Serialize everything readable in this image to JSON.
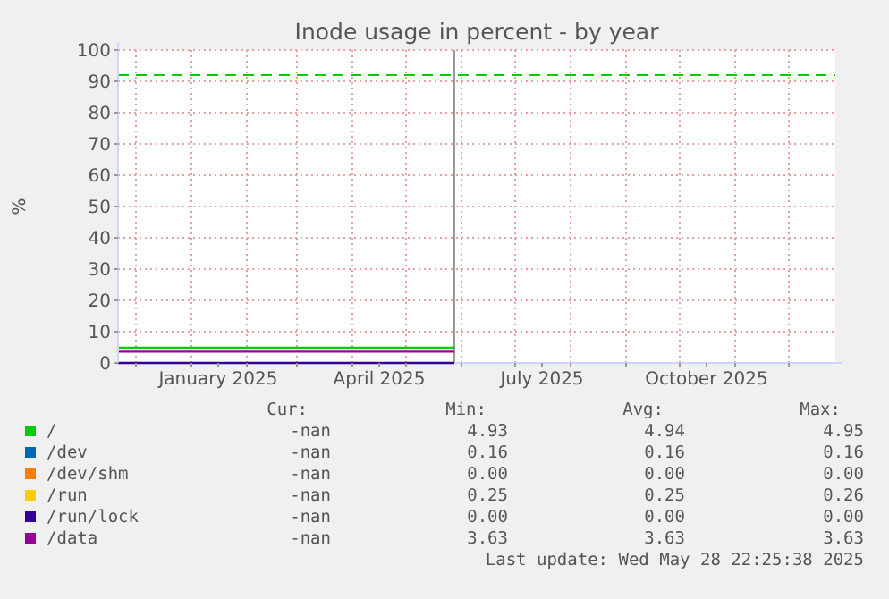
{
  "chart_data": {
    "type": "line",
    "title": "Inode usage in percent - by year",
    "ylabel": "%",
    "x": [
      "2024-11-21",
      "2025-05-28"
    ],
    "xlim": [
      "2024-11-21",
      "2025-12-27"
    ],
    "xticks": [
      {
        "value": "2024-12-01",
        "label": null
      },
      {
        "value": "2025-01-01",
        "label": null
      },
      {
        "value": "2025-01-16",
        "label": "January 2025"
      },
      {
        "value": "2025-02-01",
        "label": null
      },
      {
        "value": "2025-03-01",
        "label": null
      },
      {
        "value": "2025-04-01",
        "label": null
      },
      {
        "value": "2025-04-16",
        "label": "April 2025"
      },
      {
        "value": "2025-05-01",
        "label": null
      },
      {
        "value": "2025-06-01",
        "label": null
      },
      {
        "value": "2025-07-01",
        "label": null
      },
      {
        "value": "2025-07-16",
        "label": "July 2025"
      },
      {
        "value": "2025-08-01",
        "label": null
      },
      {
        "value": "2025-09-01",
        "label": null
      },
      {
        "value": "2025-10-01",
        "label": null
      },
      {
        "value": "2025-10-16",
        "label": "October 2025"
      },
      {
        "value": "2025-11-01",
        "label": null
      },
      {
        "value": "2025-12-01",
        "label": null
      }
    ],
    "ylim": [
      0,
      100
    ],
    "yticks": [
      0,
      10,
      20,
      30,
      40,
      50,
      60,
      70,
      80,
      90,
      100
    ],
    "grid": true,
    "legend": "bottom",
    "marker": "none",
    "line_style": "solid",
    "series": [
      {
        "name": "/",
        "color": "#00cc00",
        "values": [
          4.9,
          4.9
        ]
      },
      {
        "name": "/dev",
        "color": "#0066b3",
        "values": [
          null,
          null
        ]
      },
      {
        "name": "/dev/shm",
        "color": "#ff8000",
        "values": [
          null,
          null
        ]
      },
      {
        "name": "/run",
        "color": "#ffcc00",
        "values": [
          null,
          null
        ]
      },
      {
        "name": "/run/lock",
        "color": "#330099",
        "values": [
          0,
          0
        ]
      },
      {
        "name": "/data",
        "color": "#990099",
        "values": [
          3.6,
          3.6
        ]
      }
    ],
    "ref_lines": [
      {
        "axis": "y",
        "value": 92,
        "color": "#00cc00",
        "line_style": "dashed"
      },
      {
        "axis": "x",
        "value": "2025-05-28",
        "color": "#999999",
        "line_style": "solid"
      }
    ],
    "annotations": [
      "Cur:",
      "Min:",
      "Avg:",
      "Max:",
      "-nan",
      "4.93",
      "4.94",
      "4.95",
      "-nan",
      "0.16",
      "0.16",
      "0.16",
      "-nan",
      "0.00",
      "0.00",
      "0.00",
      "-nan",
      "0.25",
      "0.25",
      "0.26",
      "-nan",
      "0.00",
      "0.00",
      "0.00",
      "-nan",
      "3.63",
      "3.63",
      "3.63",
      "Last update: Wed May 28 22:25:38 2025"
    ]
  }
}
